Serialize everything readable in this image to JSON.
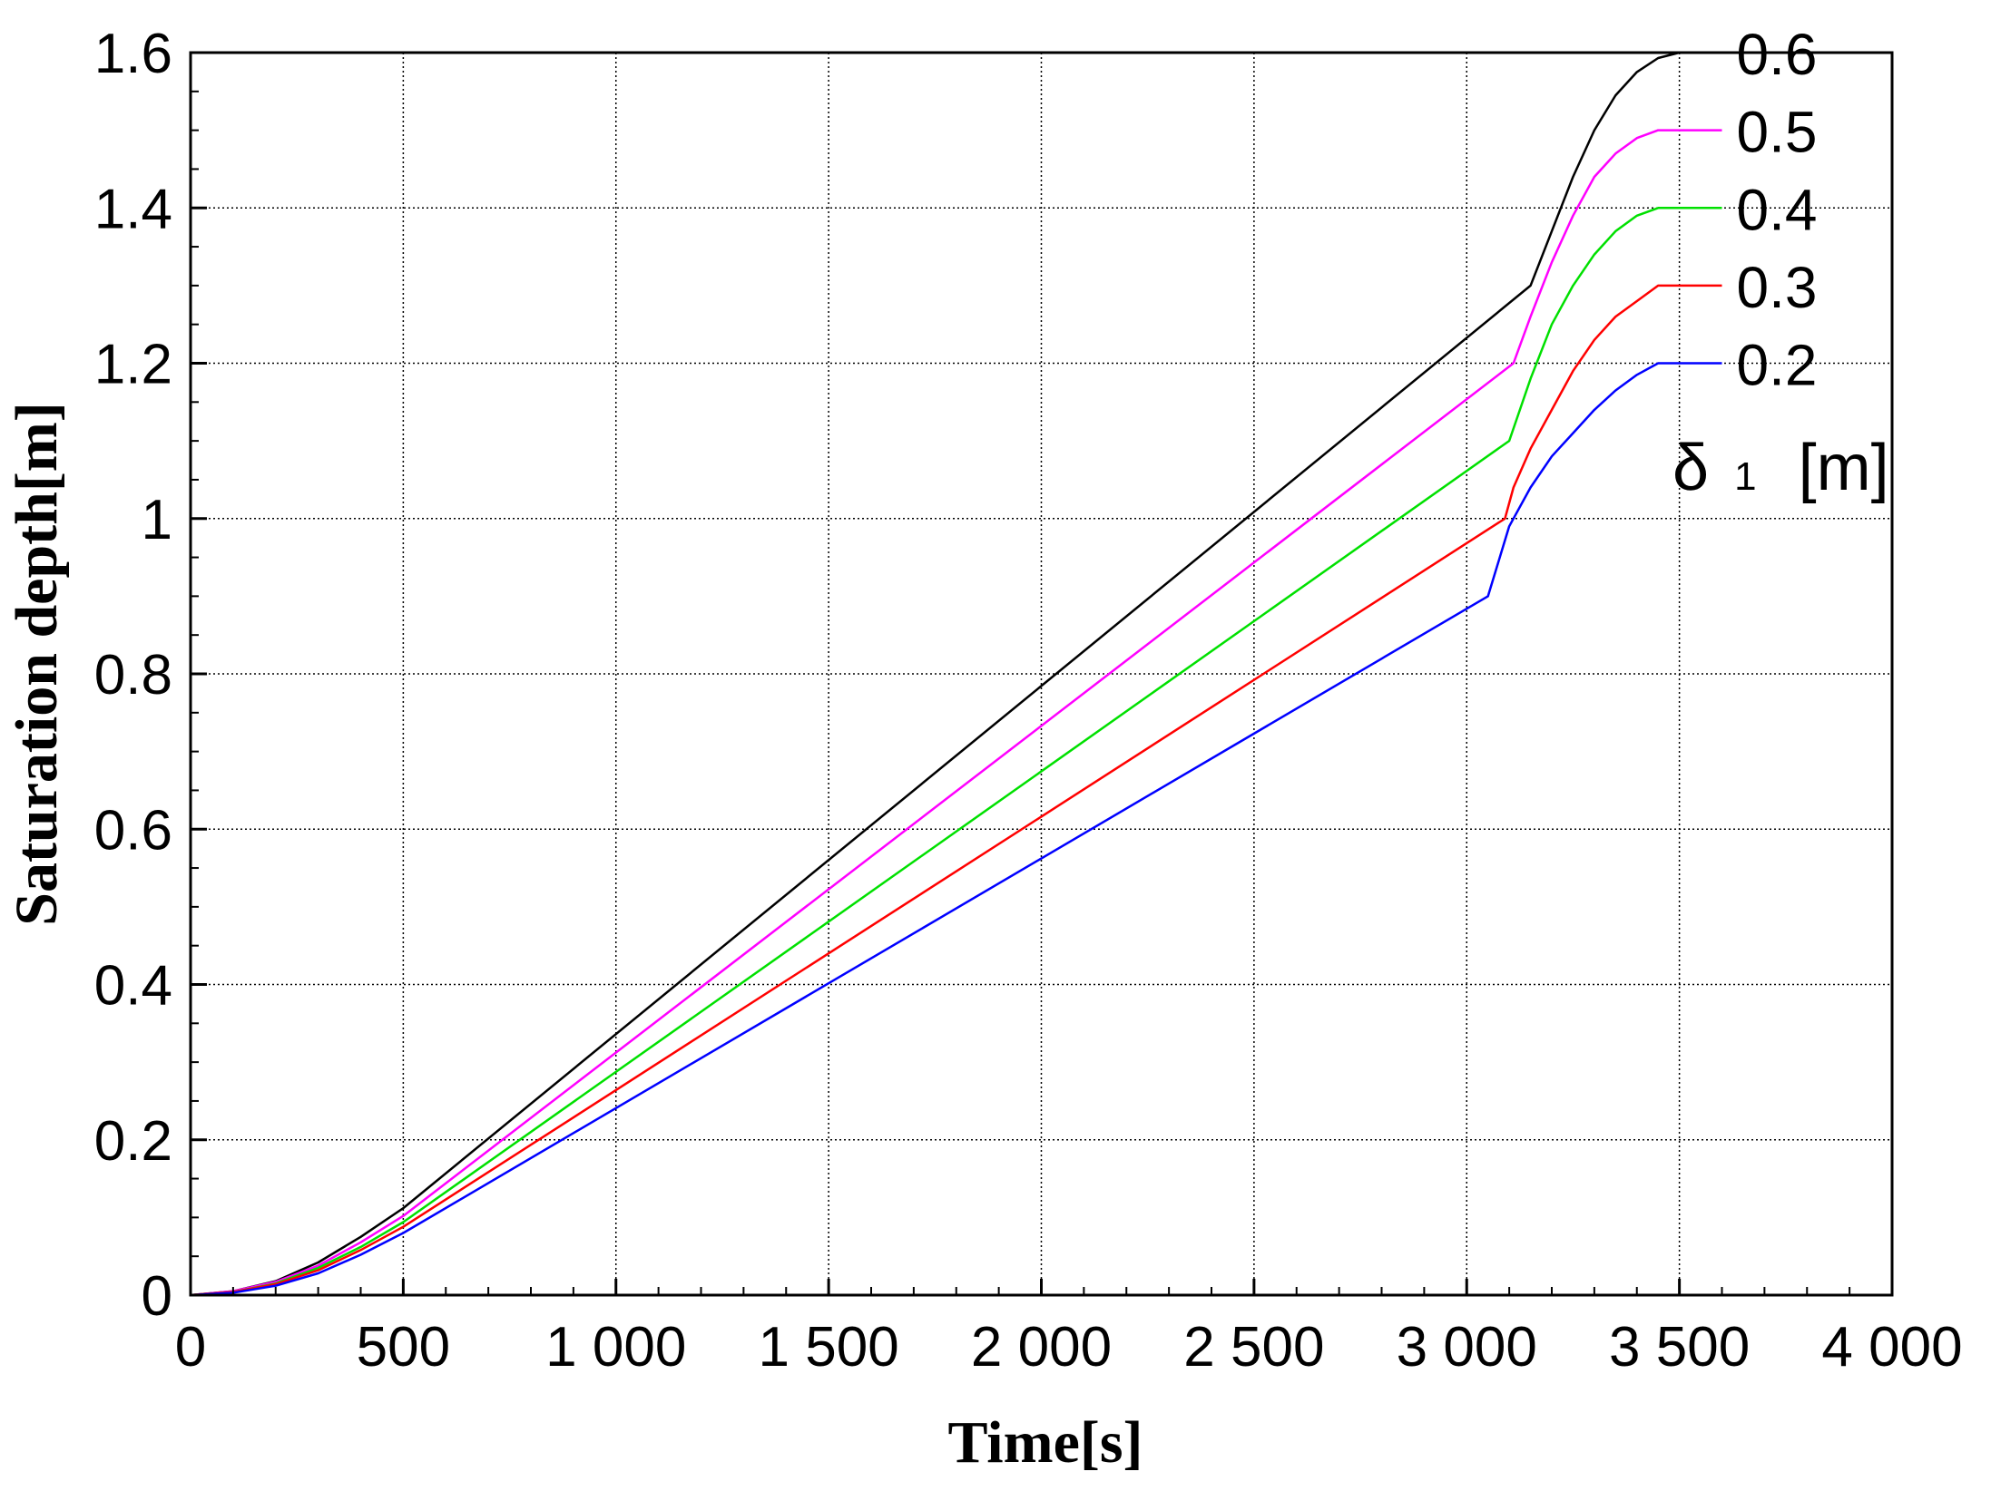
{
  "chart_data": {
    "type": "line",
    "xlabel": "Time[s]",
    "ylabel": "Saturation depth[m]",
    "xlim": [
      0,
      4000
    ],
    "ylim": [
      0,
      1.6
    ],
    "xticks": [
      0,
      500,
      1000,
      1500,
      2000,
      2500,
      3000,
      3500,
      4000
    ],
    "xtick_labels": [
      "0",
      "500",
      "1 000",
      "1 500",
      "2 000",
      "2 500",
      "3 000",
      "3 500",
      "4 000"
    ],
    "yticks": [
      0,
      0.2,
      0.4,
      0.6,
      0.8,
      1.0,
      1.2,
      1.4,
      1.6
    ],
    "ytick_labels": [
      "0",
      "0.2",
      "0.4",
      "0.6",
      "0.8",
      "1",
      "1.2",
      "1.4",
      "1.6"
    ],
    "grid": true,
    "legend": {
      "title_symbol": "δ",
      "title_subscript": "1",
      "title_unit": "[m]"
    },
    "series": [
      {
        "name": "0.6",
        "color": "#000000",
        "x": [
          0,
          100,
          200,
          300,
          400,
          500,
          3150,
          3200,
          3250,
          3300,
          3350,
          3400,
          3450,
          3500,
          3600
        ],
        "y": [
          0,
          0.005,
          0.018,
          0.042,
          0.075,
          0.112,
          1.3,
          1.37,
          1.44,
          1.5,
          1.545,
          1.575,
          1.593,
          1.6,
          1.6
        ]
      },
      {
        "name": "0.5",
        "color": "#ff00ff",
        "x": [
          0,
          100,
          200,
          300,
          400,
          500,
          3110,
          3150,
          3200,
          3250,
          3300,
          3350,
          3400,
          3450,
          3600
        ],
        "y": [
          0,
          0.005,
          0.017,
          0.038,
          0.068,
          0.102,
          1.2,
          1.26,
          1.33,
          1.39,
          1.44,
          1.47,
          1.49,
          1.5,
          1.5
        ]
      },
      {
        "name": "0.4",
        "color": "#00e000",
        "x": [
          0,
          100,
          200,
          300,
          400,
          500,
          3100,
          3150,
          3200,
          3250,
          3300,
          3350,
          3400,
          3450,
          3600
        ],
        "y": [
          0,
          0.004,
          0.015,
          0.035,
          0.062,
          0.094,
          1.1,
          1.18,
          1.25,
          1.3,
          1.34,
          1.37,
          1.39,
          1.4,
          1.4
        ]
      },
      {
        "name": "0.3",
        "color": "#ff0000",
        "x": [
          0,
          100,
          200,
          300,
          400,
          500,
          3090,
          3110,
          3150,
          3200,
          3250,
          3300,
          3350,
          3400,
          3450,
          3600
        ],
        "y": [
          0,
          0.004,
          0.014,
          0.032,
          0.058,
          0.088,
          1.0,
          1.04,
          1.09,
          1.14,
          1.19,
          1.23,
          1.26,
          1.28,
          1.3,
          1.3
        ]
      },
      {
        "name": "0.2",
        "color": "#0000ff",
        "x": [
          0,
          100,
          200,
          300,
          400,
          500,
          3050,
          3100,
          3150,
          3200,
          3250,
          3300,
          3350,
          3400,
          3450,
          3600
        ],
        "y": [
          0,
          0.003,
          0.012,
          0.028,
          0.052,
          0.08,
          0.9,
          0.99,
          1.04,
          1.08,
          1.11,
          1.14,
          1.165,
          1.185,
          1.2,
          1.2
        ]
      }
    ]
  }
}
